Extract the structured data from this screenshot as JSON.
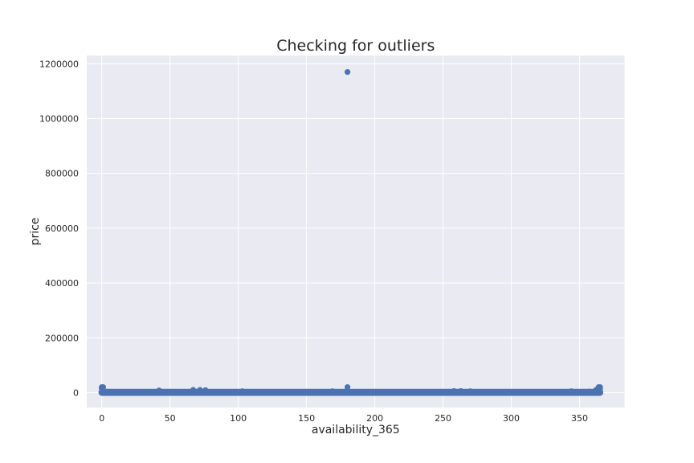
{
  "chart_data": {
    "type": "scatter",
    "title": "Checking for outliers",
    "xlabel": "availability_365",
    "ylabel": "price",
    "xlim": [
      -11,
      383
    ],
    "ylim": [
      -54000,
      1230000
    ],
    "xticks": [
      0,
      50,
      100,
      150,
      200,
      250,
      300,
      350
    ],
    "yticks": [
      0,
      200000,
      400000,
      600000,
      800000,
      1000000,
      1200000
    ],
    "grid": true,
    "point_color": "#4c72b0",
    "background_color": "#eaeaf2",
    "band": {
      "x_from": 0,
      "x_to": 365,
      "y_from": 0,
      "y_to": 2000
    },
    "points": [
      {
        "x": 0,
        "y": 20000
      },
      {
        "x": 1,
        "y": 20000
      },
      {
        "x": 0,
        "y": 15000
      },
      {
        "x": 1,
        "y": 10000
      },
      {
        "x": 42,
        "y": 8000
      },
      {
        "x": 67,
        "y": 10000
      },
      {
        "x": 72,
        "y": 10000
      },
      {
        "x": 76,
        "y": 9000
      },
      {
        "x": 103,
        "y": 5000
      },
      {
        "x": 169,
        "y": 5000
      },
      {
        "x": 180,
        "y": 1170000
      },
      {
        "x": 180,
        "y": 20000
      },
      {
        "x": 258,
        "y": 6000
      },
      {
        "x": 263,
        "y": 6000
      },
      {
        "x": 270,
        "y": 5000
      },
      {
        "x": 344,
        "y": 5000
      },
      {
        "x": 357,
        "y": 4000
      },
      {
        "x": 362,
        "y": 10000
      },
      {
        "x": 364,
        "y": 20000
      },
      {
        "x": 365,
        "y": 20000
      },
      {
        "x": 365,
        "y": 15000
      },
      {
        "x": 364,
        "y": 10000
      }
    ]
  }
}
